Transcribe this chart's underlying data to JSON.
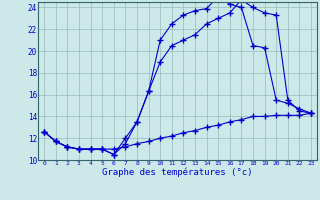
{
  "xlabel": "Graphe des températures (°c)",
  "bg_color": "#cce8e8",
  "line_color": "#0000cc",
  "grid_color": "#99bbbb",
  "ylim": [
    10,
    24.5
  ],
  "xlim": [
    -0.5,
    23.5
  ],
  "yticks": [
    10,
    12,
    14,
    16,
    18,
    20,
    22,
    24
  ],
  "xticks": [
    0,
    1,
    2,
    3,
    4,
    5,
    6,
    7,
    8,
    9,
    10,
    11,
    12,
    13,
    14,
    15,
    16,
    17,
    18,
    19,
    20,
    21,
    22,
    23
  ],
  "line1_x": [
    0,
    1,
    2,
    3,
    4,
    5,
    6,
    7,
    8,
    9,
    10,
    11,
    12,
    13,
    14,
    15,
    16,
    17,
    18,
    19,
    20,
    21,
    22,
    23
  ],
  "line1_y": [
    12.6,
    11.7,
    11.2,
    11.0,
    11.0,
    11.0,
    10.5,
    12.0,
    13.5,
    16.3,
    19.0,
    20.5,
    21.0,
    21.5,
    22.5,
    23.0,
    23.5,
    24.7,
    24.0,
    23.5,
    23.3,
    15.5,
    14.5,
    14.3
  ],
  "line2_x": [
    0,
    1,
    2,
    3,
    4,
    5,
    6,
    7,
    8,
    9,
    10,
    11,
    12,
    13,
    14,
    15,
    16,
    17,
    18,
    19,
    20,
    21,
    22,
    23
  ],
  "line2_y": [
    12.6,
    11.7,
    11.2,
    11.0,
    11.0,
    11.0,
    10.5,
    11.5,
    13.5,
    16.3,
    21.0,
    22.5,
    23.3,
    23.7,
    23.9,
    25.0,
    24.3,
    24.0,
    20.5,
    20.3,
    15.5,
    15.2,
    14.7,
    14.3
  ],
  "line3_x": [
    0,
    1,
    2,
    3,
    4,
    5,
    6,
    7,
    8,
    9,
    10,
    11,
    12,
    13,
    14,
    15,
    16,
    17,
    18,
    19,
    20,
    21,
    22,
    23
  ],
  "line3_y": [
    12.6,
    11.7,
    11.2,
    11.0,
    11.0,
    11.0,
    11.0,
    11.2,
    11.5,
    11.7,
    12.0,
    12.2,
    12.5,
    12.7,
    13.0,
    13.2,
    13.5,
    13.7,
    14.0,
    14.0,
    14.1,
    14.1,
    14.1,
    14.3
  ]
}
